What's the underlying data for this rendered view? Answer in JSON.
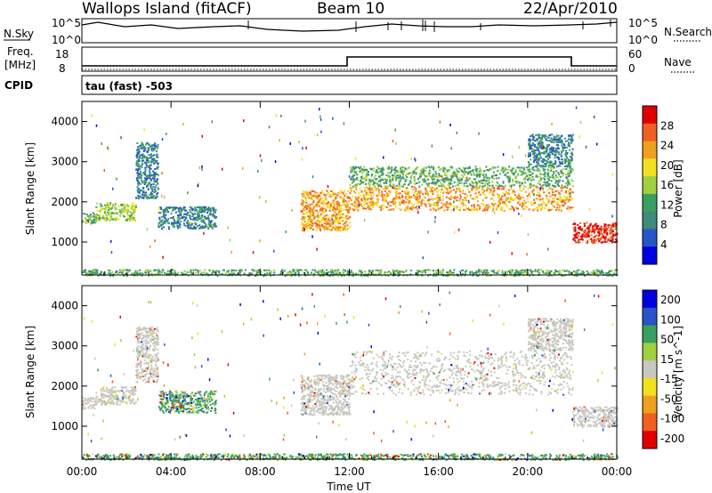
{
  "header": {
    "station": "Wallops Island (fitACF)",
    "beam": "Beam 10",
    "date": "22/Apr/2010"
  },
  "strips": {
    "nsky_label": "N.Sky",
    "nsearch_label": "N.Search",
    "freq_label_1": "Freq.",
    "freq_label_2": "[MHz]",
    "nave_label": "Nave",
    "cpid_label": "CPID",
    "cpid_value": "tau (fast) -503",
    "noise_ticks_left": [
      "10^5",
      "10^0"
    ],
    "noise_ticks_right": [
      "10^5",
      "10^0"
    ],
    "freq_ticks_left": [
      "18",
      "8"
    ],
    "nave_ticks_right": [
      "60",
      "0"
    ]
  },
  "colors": {
    "power_scale": [
      "#0000e0",
      "#2a55c8",
      "#3f8a78",
      "#3aa060",
      "#a0d040",
      "#f0e020",
      "#f0a020",
      "#f06020",
      "#e00000"
    ],
    "velocity_scale": [
      "#e00000",
      "#f06020",
      "#f0a020",
      "#f0e020",
      "#c8c8c0",
      "#a0d040",
      "#3aa060",
      "#2a55c8",
      "#0000e0"
    ],
    "ground_scatter": "#c8c8c0"
  },
  "chart_data": [
    {
      "type": "heatmap",
      "panel": "power",
      "ylabel": "Slant Range [km]",
      "xlabel": "Time UT",
      "x_ticks": [
        "00:00",
        "04:00",
        "08:00",
        "12:00",
        "16:00",
        "20:00",
        "00:00"
      ],
      "y_ticks": [
        1000,
        2000,
        3000,
        4000
      ],
      "xlim": [
        0,
        24
      ],
      "ylim": [
        180,
        4500
      ],
      "colorbar_label": "Power [dB]",
      "colorbar_ticks": [
        4,
        8,
        12,
        16,
        20,
        24,
        28
      ],
      "features": [
        {
          "t0": 0.0,
          "t1": 0.6,
          "r0": 1450,
          "r1": 1750,
          "level": 3
        },
        {
          "t0": 0.6,
          "t1": 2.4,
          "r0": 1550,
          "r1": 2000,
          "level": 4
        },
        {
          "t0": 2.4,
          "t1": 3.4,
          "r0": 2100,
          "r1": 3500,
          "level": 2
        },
        {
          "t0": 3.4,
          "t1": 6.0,
          "r0": 1350,
          "r1": 1900,
          "level": 2
        },
        {
          "t0": 9.8,
          "t1": 12.0,
          "r0": 1300,
          "r1": 2300,
          "level": 6
        },
        {
          "t0": 12.0,
          "t1": 22.0,
          "r0": 1800,
          "r1": 2400,
          "level": 6
        },
        {
          "t0": 12.0,
          "t1": 22.0,
          "r0": 2400,
          "r1": 2900,
          "level": 3
        },
        {
          "t0": 20.0,
          "t1": 22.0,
          "r0": 2900,
          "r1": 3700,
          "level": 2
        },
        {
          "t0": 22.0,
          "t1": 24.0,
          "r0": 1000,
          "r1": 1500,
          "level": 8
        },
        {
          "t0": 0.0,
          "t1": 24.0,
          "r0": 180,
          "r1": 330,
          "level": 3
        }
      ]
    },
    {
      "type": "heatmap",
      "panel": "velocity",
      "ylabel": "Slant Range [km]",
      "xlabel": "Time UT",
      "x_ticks": [
        "00:00",
        "04:00",
        "08:00",
        "12:00",
        "16:00",
        "20:00",
        "00:00"
      ],
      "y_ticks": [
        1000,
        2000,
        3000,
        4000
      ],
      "xlim": [
        0,
        24
      ],
      "ylim": [
        180,
        4500
      ],
      "colorbar_label": "Velocity [m s^-1]",
      "colorbar_ticks": [
        200,
        100,
        50,
        15,
        -15,
        -50,
        -100,
        -200
      ],
      "features": [
        {
          "t0": 0.0,
          "t1": 0.6,
          "r0": 1450,
          "r1": 1750,
          "kind": "ground"
        },
        {
          "t0": 0.6,
          "t1": 2.4,
          "r0": 1550,
          "r1": 2000,
          "kind": "ground"
        },
        {
          "t0": 2.4,
          "t1": 3.4,
          "r0": 2100,
          "r1": 3500,
          "kind": "ground"
        },
        {
          "t0": 3.4,
          "t1": 6.0,
          "r0": 1350,
          "r1": 1900,
          "kind": "iono",
          "velocity": 60
        },
        {
          "t0": 9.8,
          "t1": 12.0,
          "r0": 1300,
          "r1": 2300,
          "kind": "ground"
        },
        {
          "t0": 12.0,
          "t1": 22.0,
          "r0": 1800,
          "r1": 2900,
          "kind": "ground"
        },
        {
          "t0": 20.0,
          "t1": 22.0,
          "r0": 2900,
          "r1": 3700,
          "kind": "ground"
        },
        {
          "t0": 22.0,
          "t1": 24.0,
          "r0": 1000,
          "r1": 1500,
          "kind": "ground"
        },
        {
          "t0": 0.0,
          "t1": 24.0,
          "r0": 180,
          "r1": 330,
          "kind": "iono",
          "velocity": 40
        }
      ]
    }
  ]
}
